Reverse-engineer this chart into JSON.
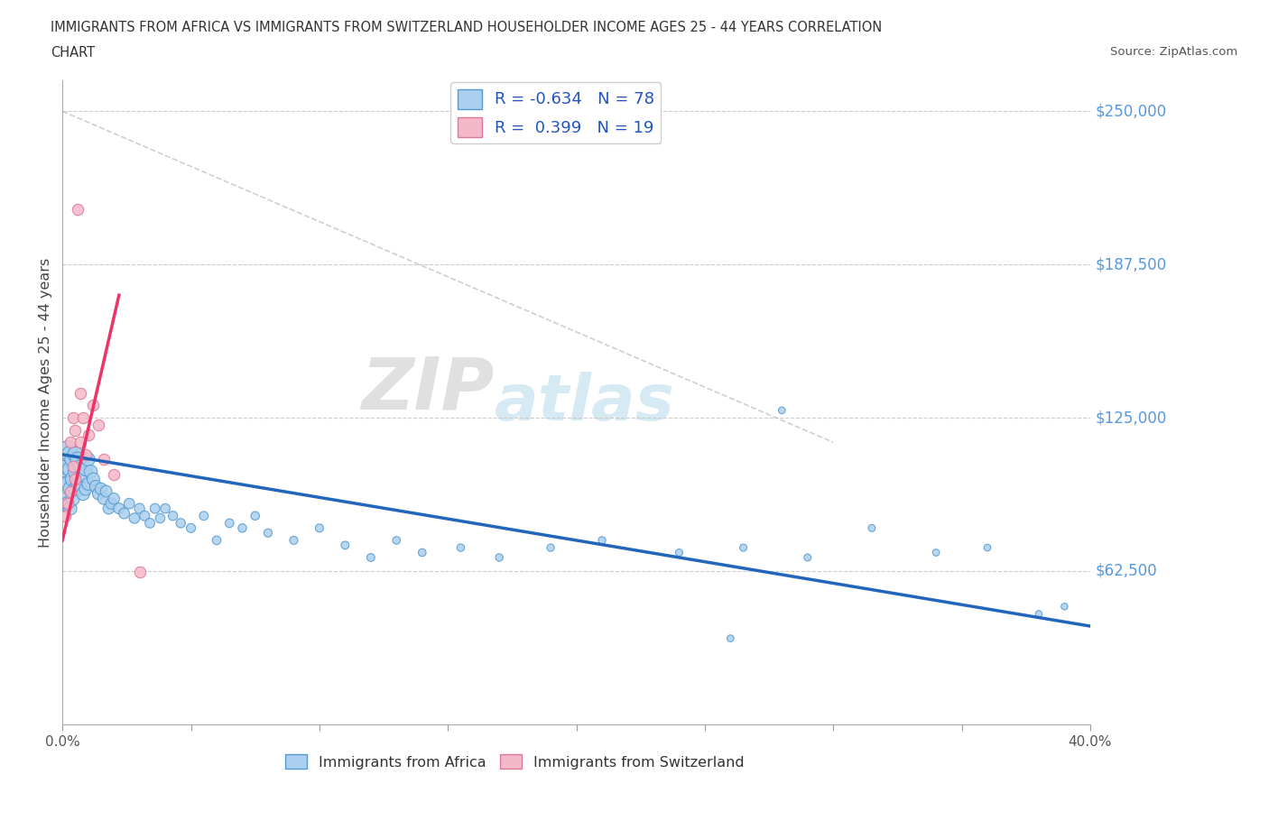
{
  "title_line1": "IMMIGRANTS FROM AFRICA VS IMMIGRANTS FROM SWITZERLAND HOUSEHOLDER INCOME AGES 25 - 44 YEARS CORRELATION",
  "title_line2": "CHART",
  "source": "Source: ZipAtlas.com",
  "ylabel": "Householder Income Ages 25 - 44 years",
  "xlim": [
    0.0,
    0.4
  ],
  "ylim": [
    0,
    262500
  ],
  "africa_color": "#aacfef",
  "africa_edge": "#5599cc",
  "switzerland_color": "#f5b8c8",
  "switzerland_edge": "#dd7799",
  "trendline_africa_color": "#2266bb",
  "trendline_switzerland_color": "#ee3366",
  "R_africa": -0.634,
  "N_africa": 78,
  "R_switzerland": 0.399,
  "N_switzerland": 19,
  "watermark_zip": "ZIP",
  "watermark_atlas": "atlas",
  "grid_color": "#cccccc",
  "background_color": "#ffffff",
  "africa_x": [
    0.001,
    0.001,
    0.001,
    0.001,
    0.001,
    0.002,
    0.002,
    0.002,
    0.002,
    0.003,
    0.003,
    0.003,
    0.003,
    0.004,
    0.004,
    0.004,
    0.005,
    0.005,
    0.005,
    0.006,
    0.006,
    0.007,
    0.007,
    0.008,
    0.008,
    0.009,
    0.009,
    0.01,
    0.01,
    0.011,
    0.012,
    0.013,
    0.014,
    0.015,
    0.016,
    0.017,
    0.018,
    0.019,
    0.02,
    0.022,
    0.024,
    0.026,
    0.028,
    0.03,
    0.032,
    0.034,
    0.036,
    0.038,
    0.04,
    0.043,
    0.046,
    0.05,
    0.055,
    0.06,
    0.065,
    0.07,
    0.075,
    0.08,
    0.09,
    0.1,
    0.11,
    0.12,
    0.13,
    0.14,
    0.155,
    0.17,
    0.19,
    0.21,
    0.24,
    0.265,
    0.29,
    0.315,
    0.34,
    0.36,
    0.38,
    0.39,
    0.26,
    0.28
  ],
  "africa_y": [
    108000,
    102000,
    98000,
    94000,
    89000,
    112000,
    105000,
    98000,
    90000,
    110000,
    104000,
    96000,
    88000,
    108000,
    100000,
    92000,
    110000,
    103000,
    96000,
    108000,
    98000,
    105000,
    96000,
    102000,
    94000,
    104000,
    96000,
    108000,
    98000,
    103000,
    100000,
    97000,
    94000,
    96000,
    92000,
    95000,
    88000,
    90000,
    92000,
    88000,
    86000,
    90000,
    84000,
    88000,
    85000,
    82000,
    88000,
    84000,
    88000,
    85000,
    82000,
    80000,
    85000,
    75000,
    82000,
    80000,
    85000,
    78000,
    75000,
    80000,
    73000,
    68000,
    75000,
    70000,
    72000,
    68000,
    72000,
    75000,
    70000,
    72000,
    68000,
    80000,
    70000,
    72000,
    45000,
    48000,
    35000,
    128000
  ],
  "africa_sizes": [
    200,
    160,
    140,
    120,
    100,
    200,
    160,
    140,
    120,
    180,
    150,
    130,
    110,
    160,
    140,
    120,
    150,
    130,
    115,
    140,
    120,
    130,
    115,
    125,
    110,
    120,
    105,
    115,
    100,
    110,
    100,
    95,
    90,
    90,
    85,
    85,
    80,
    80,
    80,
    75,
    72,
    70,
    68,
    65,
    63,
    60,
    60,
    58,
    58,
    55,
    55,
    53,
    50,
    48,
    48,
    46,
    46,
    44,
    42,
    42,
    40,
    40,
    38,
    38,
    36,
    36,
    35,
    35,
    33,
    33,
    32,
    32,
    30,
    30,
    28,
    28,
    30,
    30
  ],
  "switzerland_x": [
    0.001,
    0.002,
    0.003,
    0.003,
    0.004,
    0.004,
    0.005,
    0.005,
    0.006,
    0.007,
    0.007,
    0.008,
    0.009,
    0.01,
    0.012,
    0.014,
    0.016,
    0.02,
    0.03
  ],
  "switzerland_y": [
    85000,
    90000,
    95000,
    115000,
    105000,
    125000,
    100000,
    120000,
    210000,
    115000,
    135000,
    125000,
    110000,
    118000,
    130000,
    122000,
    108000,
    102000,
    62000
  ],
  "ref_line_x": [
    0.0,
    0.3
  ],
  "ref_line_y": [
    250000,
    115000
  ]
}
